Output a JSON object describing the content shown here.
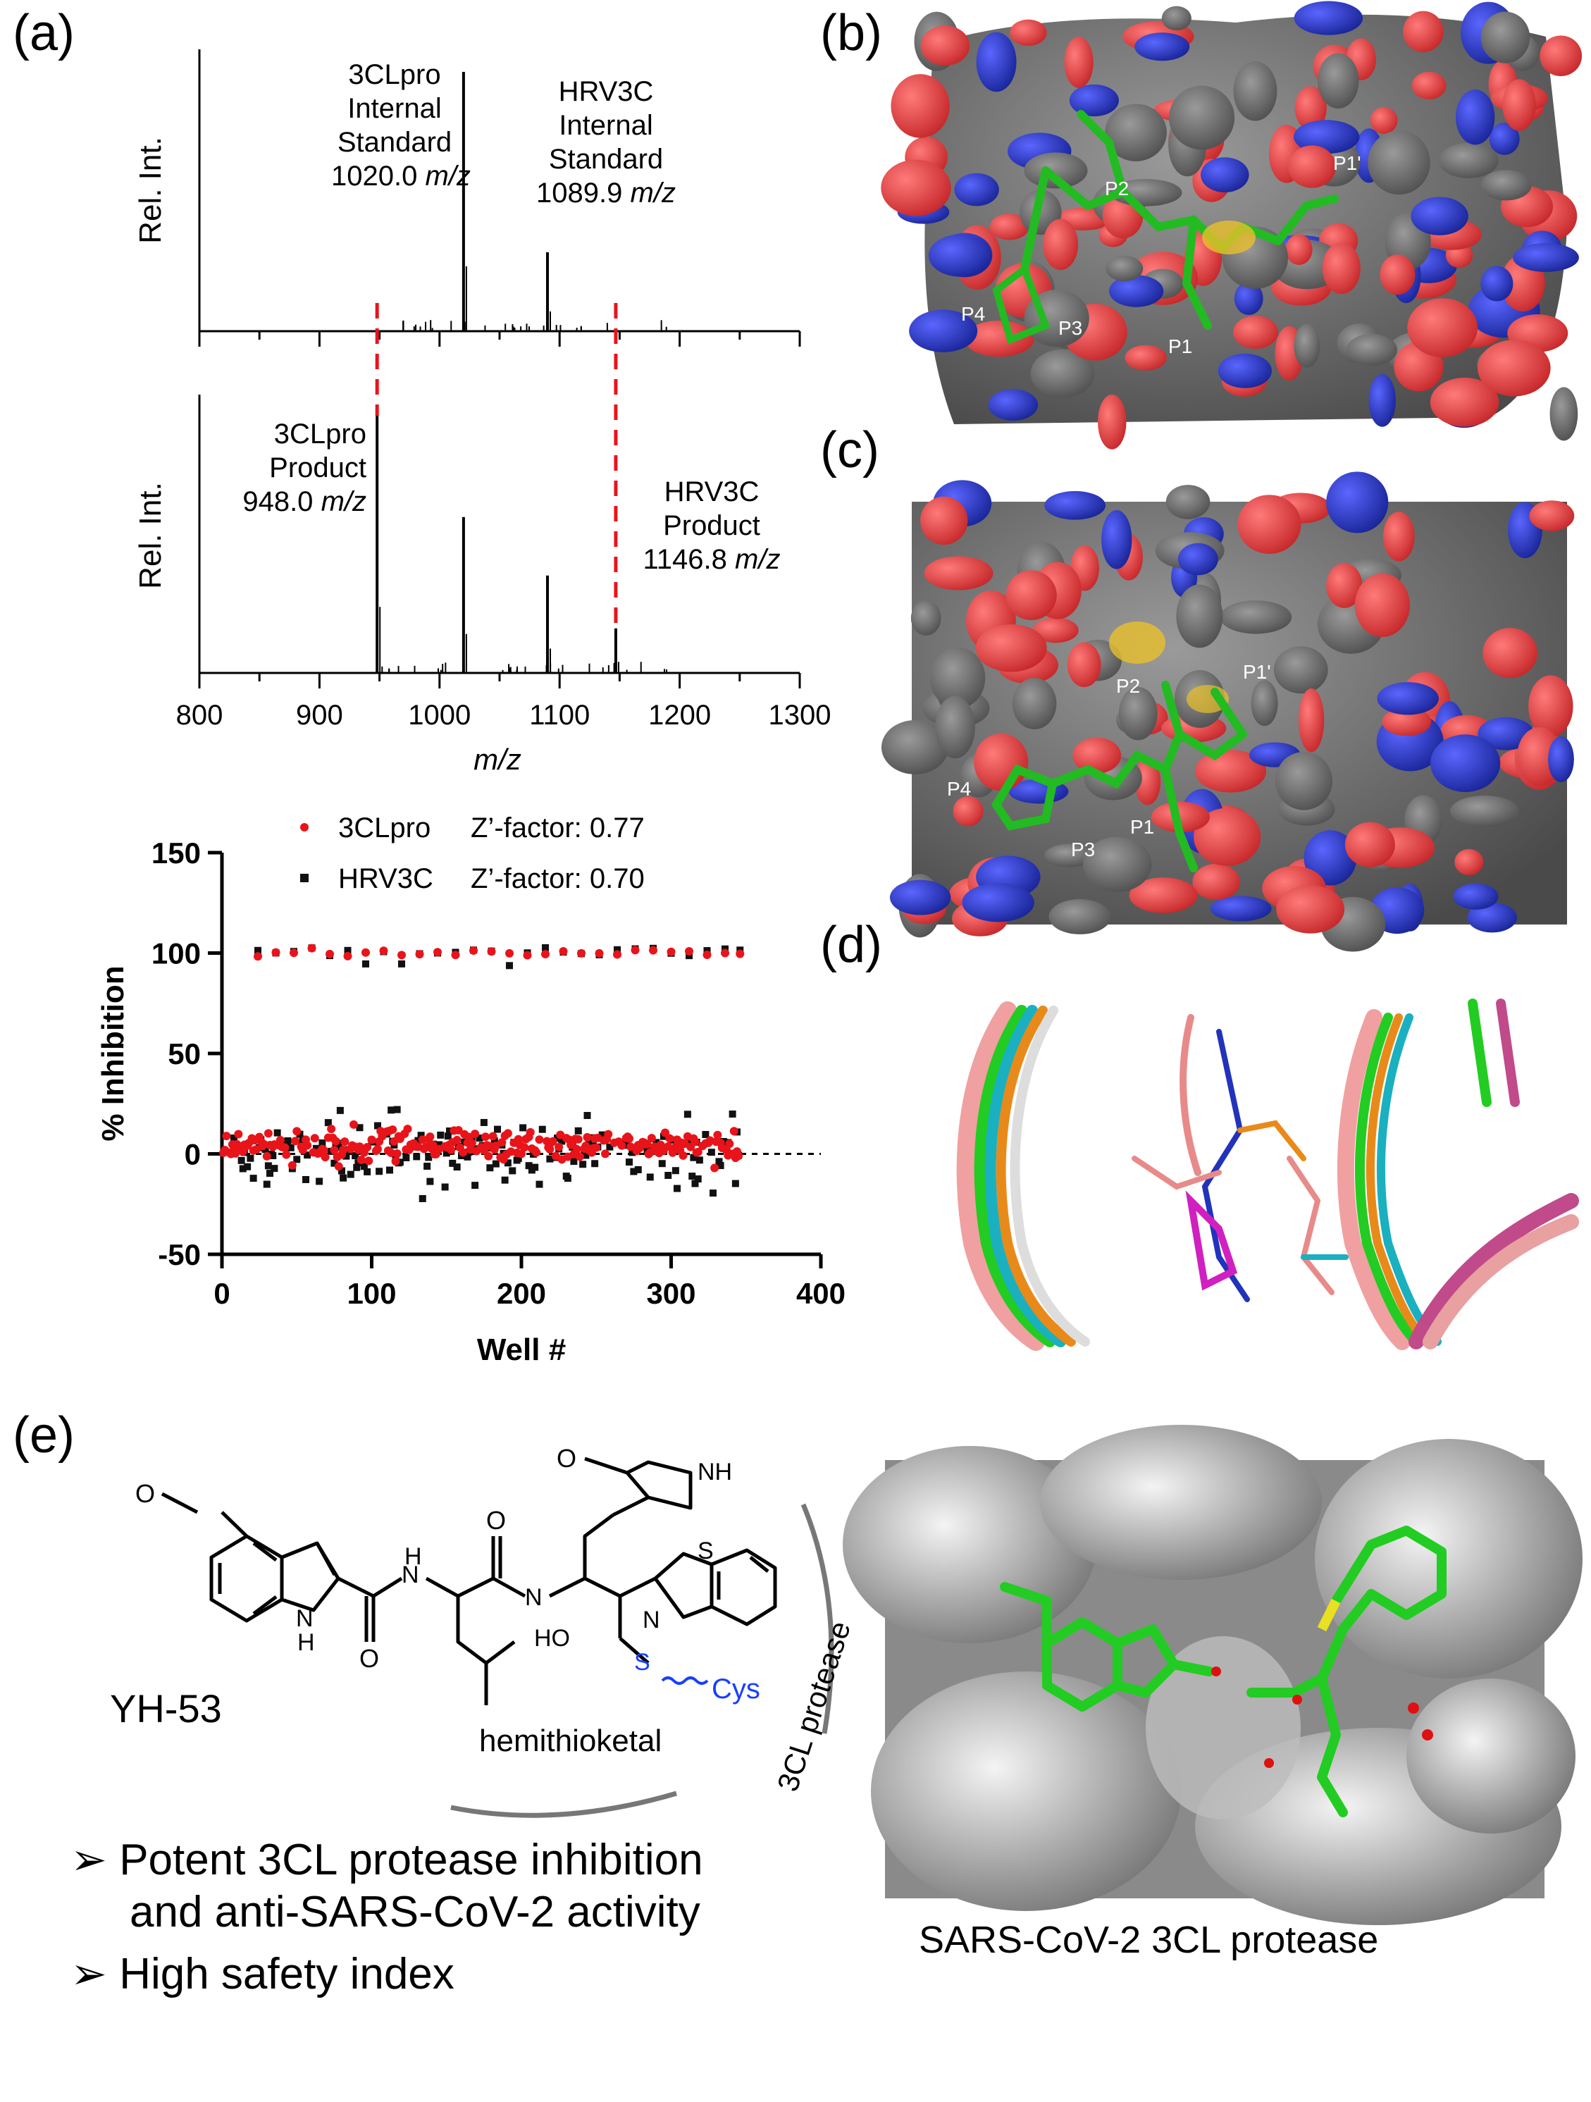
{
  "panels": {
    "a": "(a)",
    "b": "(b)",
    "c": "(c)",
    "d": "(d)",
    "e": "(e)"
  },
  "spectrum_top": {
    "ylabel": "Rel. Int.",
    "peak1": {
      "line1": "3CLpro",
      "line2": "Internal",
      "line3": "Standard",
      "mz": "1020.0",
      "unit": "m/z"
    },
    "peak2": {
      "line1": "HRV3C",
      "line2": "Internal",
      "line3": "Standard",
      "mz": "1089.9",
      "unit": "m/z"
    }
  },
  "spectrum_bottom": {
    "ylabel": "Rel. Int.",
    "peak1": {
      "line1": "3CLpro",
      "line2": "Product",
      "mz": "948.0",
      "unit": "m/z"
    },
    "peak2": {
      "line1": "HRV3C",
      "line2": "Product",
      "mz": "1146.8",
      "unit": "m/z"
    },
    "xlabel": "m/z",
    "xticks": [
      "800",
      "900",
      "1000",
      "1100",
      "1200",
      "1300"
    ]
  },
  "chart_data": [
    {
      "type": "line",
      "title": "",
      "xlabel": "",
      "ylabel": "Rel. Int.",
      "xlim": [
        800,
        1300
      ],
      "peaks": [
        {
          "x": 1020.0,
          "rel": 0.92
        },
        {
          "x": 1089.9,
          "rel": 0.28
        }
      ]
    },
    {
      "type": "line",
      "title": "",
      "xlabel": "m/z",
      "ylabel": "Rel. Int.",
      "xlim": [
        800,
        1300
      ],
      "xticks": [
        800,
        900,
        1000,
        1100,
        1200,
        1300
      ],
      "peaks": [
        {
          "x": 948.0,
          "rel": 0.95
        },
        {
          "x": 1020.0,
          "rel": 0.56
        },
        {
          "x": 1089.9,
          "rel": 0.35
        },
        {
          "x": 1146.8,
          "rel": 0.16
        }
      ]
    },
    {
      "type": "scatter",
      "xlabel": "Well #",
      "ylabel": "% Inhibition",
      "xlim": [
        0,
        400
      ],
      "ylim": [
        -50,
        150
      ],
      "xticks": [
        0,
        100,
        200,
        300,
        400
      ],
      "yticks": [
        -50,
        0,
        50,
        100,
        150
      ],
      "series": [
        {
          "name": "3CLpro",
          "note": "Z’-factor: 0.77",
          "color": "#e8141a",
          "marker": "circle"
        },
        {
          "name": "HRV3C",
          "note": "Z’-factor: 0.70",
          "color": "#111111",
          "marker": "square"
        }
      ]
    }
  ],
  "legend": {
    "s1_name": "3CLpro",
    "s1_z": "Z’-factor: 0.77",
    "s2_name": "HRV3C",
    "s2_z": "Z’-factor: 0.70"
  },
  "scatter_axes": {
    "xlabel": "Well #",
    "ylabel": "% Inhibition",
    "xticks": [
      "0",
      "100",
      "200",
      "300",
      "400"
    ],
    "yticks": [
      "150",
      "100",
      "50",
      "0",
      "-50"
    ]
  },
  "structure_b": {
    "p2": "P2",
    "p1p": "P1'",
    "p4": "P4",
    "p3": "P3",
    "p1": "P1"
  },
  "structure_c": {
    "p2": "P2",
    "p1p": "P1'",
    "p4": "P4",
    "p3": "P3",
    "p1": "P1"
  },
  "panel_e": {
    "compound": "YH-53",
    "hemithioketal": "hemithioketal",
    "protease_arc": "3CL protease",
    "cys": "Cys",
    "bullet1_line1": "Potent 3CL protease inhibition",
    "bullet1_line2": "and anti-SARS-CoV-2 activity",
    "bullet2": "High safety index",
    "caption": "SARS-CoV-2 3CL protease",
    "atoms": {
      "O": "O",
      "H": "H",
      "N": "N",
      "S": "S",
      "HO": "HO",
      "NH": "NH"
    }
  },
  "colors": {
    "oxygen": "#e84a4a",
    "nitrogen": "#2233bb",
    "carbon_surface": "#6e6e6e",
    "ligand": "#33cc33",
    "sulfur": "#e8c02a",
    "marker_red": "#e8141a",
    "dashed": "#e8141a",
    "cys_blue": "#1a3fff"
  }
}
